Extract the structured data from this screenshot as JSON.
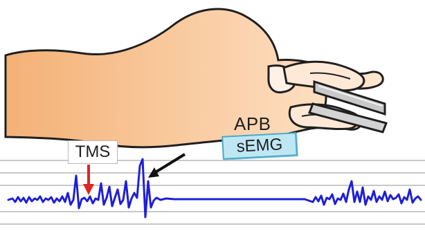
{
  "labels": {
    "muscle": "APB",
    "electrode": "sEMG",
    "stimulus": "TMS"
  },
  "colors": {
    "skin_light": "#ffe7cf",
    "skin_dark": "#f4b176",
    "outline": "#1f1f1f",
    "electrode_fill": "#bfe7f3",
    "electrode_border": "#4aa8c8",
    "signal": "#1f1fd6",
    "tms_arrow": "#e32222",
    "mep_arrow": "#111111",
    "grid_line": "#c8c8c8"
  },
  "icons": {
    "hand": "hand-illustration",
    "tool": "handle-tool-illustration",
    "stimulus_marker": "red-down-arrow",
    "mep_pointer": "black-diagonal-arrow"
  }
}
